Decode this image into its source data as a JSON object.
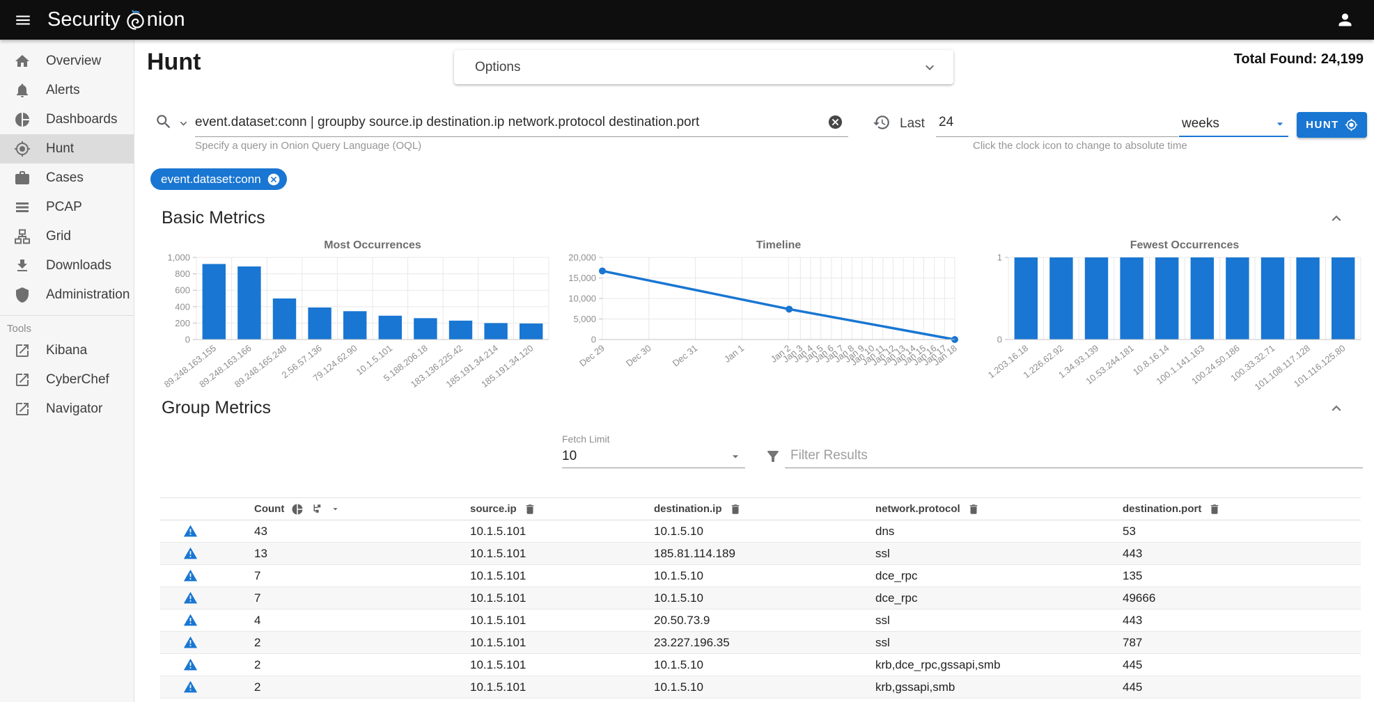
{
  "app_bar": {
    "brand_prefix": "Security",
    "brand_suffix": "nion"
  },
  "sidebar": {
    "items": [
      {
        "id": "overview",
        "label": "Overview",
        "icon": "home",
        "active": false
      },
      {
        "id": "alerts",
        "label": "Alerts",
        "icon": "bell",
        "active": false
      },
      {
        "id": "dashboards",
        "label": "Dashboards",
        "icon": "pie",
        "active": false
      },
      {
        "id": "hunt",
        "label": "Hunt",
        "icon": "crosshair",
        "active": true
      },
      {
        "id": "cases",
        "label": "Cases",
        "icon": "briefcase",
        "active": false
      },
      {
        "id": "pcap",
        "label": "PCAP",
        "icon": "lines",
        "active": false
      },
      {
        "id": "grid",
        "label": "Grid",
        "icon": "sitemap",
        "active": false
      },
      {
        "id": "downloads",
        "label": "Downloads",
        "icon": "download",
        "active": false
      },
      {
        "id": "administration",
        "label": "Administration",
        "icon": "shield",
        "active": false
      }
    ],
    "tools_label": "Tools",
    "tools": [
      {
        "id": "kibana",
        "label": "Kibana",
        "icon": "external"
      },
      {
        "id": "cyberchef",
        "label": "CyberChef",
        "icon": "external"
      },
      {
        "id": "navigator",
        "label": "Navigator",
        "icon": "external"
      }
    ]
  },
  "header": {
    "page_title": "Hunt",
    "options_label": "Options",
    "total_found_label": "Total Found:",
    "total_found_value": "24,199"
  },
  "query": {
    "value": "event.dataset:conn | groupby source.ip destination.ip network.protocol destination.port",
    "hint": "Specify a query in Onion Query Language (OQL)"
  },
  "time_range": {
    "prefix_label": "Last",
    "value": "24",
    "unit": "weeks",
    "hint": "Click the clock icon to change to absolute time"
  },
  "hunt_button_label": "HUNT",
  "filter_chip": {
    "label": "event.dataset:conn"
  },
  "sections": {
    "basic_metrics_title": "Basic Metrics",
    "group_metrics_title": "Group Metrics"
  },
  "group_controls": {
    "fetch_limit_label": "Fetch Limit",
    "fetch_limit_value": "10",
    "filter_placeholder": "Filter Results"
  },
  "table": {
    "columns": [
      "Count",
      "source.ip",
      "destination.ip",
      "network.protocol",
      "destination.port"
    ],
    "rows": [
      [
        "43",
        "10.1.5.101",
        "10.1.5.10",
        "dns",
        "53"
      ],
      [
        "13",
        "10.1.5.101",
        "185.81.114.189",
        "ssl",
        "443"
      ],
      [
        "7",
        "10.1.5.101",
        "10.1.5.10",
        "dce_rpc",
        "135"
      ],
      [
        "7",
        "10.1.5.101",
        "10.1.5.10",
        "dce_rpc",
        "49666"
      ],
      [
        "4",
        "10.1.5.101",
        "20.50.73.9",
        "ssl",
        "443"
      ],
      [
        "2",
        "10.1.5.101",
        "23.227.196.35",
        "ssl",
        "787"
      ],
      [
        "2",
        "10.1.5.101",
        "10.1.5.10",
        "krb,dce_rpc,gssapi,smb",
        "445"
      ],
      [
        "2",
        "10.1.5.101",
        "10.1.5.10",
        "krb,gssapi,smb",
        "445"
      ]
    ]
  },
  "colors": {
    "accent": "#1976d2",
    "topbar": "#0e0e0e",
    "warning_icon": "#1976d2"
  },
  "chart_data": [
    {
      "type": "bar",
      "title": "Most Occurrences",
      "categories": [
        "89.248.163.155",
        "89.248.163.166",
        "89.248.165.248",
        "2.56.57.136",
        "79.124.62.90",
        "10.1.5.101",
        "5.188.206.18",
        "183.136.225.42",
        "185.191.34.214",
        "185.191.34.120"
      ],
      "values": [
        920,
        890,
        500,
        390,
        345,
        290,
        260,
        230,
        200,
        195
      ],
      "ylim": [
        0,
        1000
      ],
      "yticks": [
        0,
        200,
        400,
        600,
        800,
        1000
      ],
      "grid": true,
      "bar_color": "#1976d2"
    },
    {
      "type": "line",
      "title": "Timeline",
      "ylim": [
        0,
        20000
      ],
      "yticks": [
        0,
        5000,
        10000,
        15000,
        20000
      ],
      "grid": true,
      "line_color": "#1976d2",
      "points": [
        {
          "label": "Dec 29",
          "pos": 0.0,
          "value": 16700
        },
        {
          "label": "Jan 3",
          "pos": 0.53,
          "value": 7400
        },
        {
          "label": "Jan 18",
          "pos": 1.0,
          "value": 0
        }
      ],
      "x_ticks": [
        {
          "label": "Dec 29",
          "pos": 0.0
        },
        {
          "label": "Dec 30",
          "pos": 0.132
        },
        {
          "label": "Dec 31",
          "pos": 0.264
        },
        {
          "label": "Jan 1",
          "pos": 0.396
        },
        {
          "label": "Jan 2",
          "pos": 0.528
        },
        {
          "label": "Jan 3",
          "pos": 0.562
        },
        {
          "label": "Jan 4",
          "pos": 0.591
        },
        {
          "label": "Jan 5",
          "pos": 0.62
        },
        {
          "label": "Jan 6",
          "pos": 0.65
        },
        {
          "label": "Jan 7",
          "pos": 0.679
        },
        {
          "label": "Jan 8",
          "pos": 0.708
        },
        {
          "label": "Jan 9",
          "pos": 0.737
        },
        {
          "label": "Jan 10",
          "pos": 0.766
        },
        {
          "label": "Jan 11",
          "pos": 0.796
        },
        {
          "label": "Jan 12",
          "pos": 0.825
        },
        {
          "label": "Jan 13",
          "pos": 0.854
        },
        {
          "label": "Jan 14",
          "pos": 0.883
        },
        {
          "label": "Jan 15",
          "pos": 0.912
        },
        {
          "label": "Jan 16",
          "pos": 0.942
        },
        {
          "label": "Jan 17",
          "pos": 0.971
        },
        {
          "label": "Jan 18",
          "pos": 1.0
        }
      ]
    },
    {
      "type": "bar",
      "title": "Fewest Occurrences",
      "categories": [
        "1.203.16.18",
        "1.226.62.92",
        "1.34.93.139",
        "10.53.244.181",
        "10.8.16.14",
        "100.1.141.163",
        "100.24.50.186",
        "100.33.32.71",
        "101.108.117.128",
        "101.116.125.80"
      ],
      "values": [
        1,
        1,
        1,
        1,
        1,
        1,
        1,
        1,
        1,
        1
      ],
      "ylim": [
        0,
        1
      ],
      "yticks": [
        0,
        1
      ],
      "grid": true,
      "bar_color": "#1976d2"
    }
  ]
}
